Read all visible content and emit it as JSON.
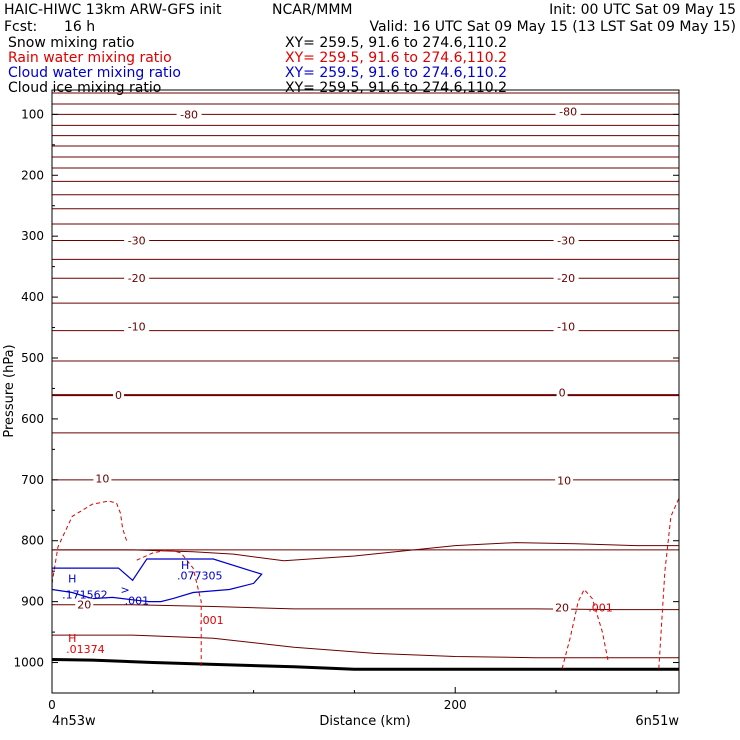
{
  "header": {
    "model": "HAIC-HIWC 13km ARW-GFS init",
    "org": "NCAR/MMM",
    "init": "Init: 00 UTC Sat 09 May 15",
    "fcst_label": "Fcst:",
    "fcst_value": "16 h",
    "valid": "Valid: 16 UTC Sat 09 May 15 (13 LST Sat 09 May 15)"
  },
  "fields": [
    {
      "name": "Snow mixing ratio",
      "xy": "XY= 259.5, 91.6 to 274.6,110.2",
      "color": "#000000"
    },
    {
      "name": "Rain water mixing ratio",
      "xy": "XY= 259.5, 91.6 to 274.6,110.2",
      "color": "#e00000"
    },
    {
      "name": "Cloud water mixing ratio",
      "xy": "XY= 259.5, 91.6 to 274.6,110.2",
      "color": "#0000cc"
    },
    {
      "name": "Cloud ice mixing ratio",
      "xy": "XY= 259.5, 91.6 to 274.6,110.2",
      "color": "#000000"
    }
  ],
  "colors": {
    "isotherm": "#6b0000",
    "terrain": "#000000",
    "rain": "#e00000",
    "cloud_water": "#0000cc"
  },
  "chart_data": {
    "type": "line",
    "xlabel": "Distance (km)",
    "ylabel": "Pressure (hPa)",
    "xlim": [
      0,
      311
    ],
    "ylim": [
      1050,
      60
    ],
    "x_ticks": [
      0,
      200
    ],
    "y_ticks": [
      100,
      200,
      300,
      400,
      500,
      600,
      700,
      800,
      900,
      1000
    ],
    "endpoints": {
      "left": "4n53w",
      "right": "6n51w"
    },
    "isotherms": {
      "pressures": [
        65,
        83,
        100,
        118,
        135,
        152,
        170,
        188,
        210,
        232,
        255,
        280,
        307,
        338,
        369,
        410,
        455,
        505,
        561,
        623,
        700,
        815
      ],
      "labels": [
        {
          "text": "-80",
          "x": 68,
          "p": 100
        },
        {
          "text": "-80",
          "x": 256,
          "p": 95
        },
        {
          "text": "-30",
          "x": 42,
          "p": 307
        },
        {
          "text": "-30",
          "x": 255,
          "p": 307
        },
        {
          "text": "-20",
          "x": 42,
          "p": 369
        },
        {
          "text": "-20",
          "x": 255,
          "p": 369
        },
        {
          "text": "-10",
          "x": 42,
          "p": 448
        },
        {
          "text": "-10",
          "x": 255,
          "p": 448
        },
        {
          "text": "0",
          "x": 33,
          "p": 561
        },
        {
          "text": "0",
          "x": 253,
          "p": 557
        },
        {
          "text": "10",
          "x": 25,
          "p": 698
        },
        {
          "text": "10",
          "x": 254,
          "p": 701
        },
        {
          "text": "20",
          "x": 16,
          "p": 905
        },
        {
          "text": "20",
          "x": 253,
          "p": 910
        }
      ],
      "near_surface": [
        {
          "x": [
            0,
            40,
            80,
            120,
            160,
            200,
            240,
            280,
            311
          ],
          "p": [
            905,
            905,
            908,
            912,
            912,
            912,
            912,
            913,
            913
          ]
        },
        {
          "x": [
            0,
            40,
            80,
            120,
            160,
            200,
            240,
            280,
            311
          ],
          "p": [
            955,
            955,
            960,
            975,
            985,
            990,
            992,
            992,
            992
          ]
        }
      ],
      "warm_curve": {
        "x": [
          0,
          40,
          70,
          90,
          115,
          150,
          200,
          230,
          260,
          290,
          311
        ],
        "p": [
          815,
          815,
          818,
          822,
          833,
          825,
          808,
          803,
          805,
          808,
          808
        ]
      }
    },
    "terrain": {
      "x": [
        0,
        20,
        50,
        80,
        120,
        150,
        200,
        250,
        311
      ],
      "p": [
        995,
        996,
        1000,
        1003,
        1007,
        1011,
        1011,
        1011,
        1011
      ]
    },
    "rain_contours": [
      {
        "x": [
          0,
          3,
          10,
          20,
          28,
          32,
          34,
          35,
          37
        ],
        "p": [
          870,
          810,
          760,
          740,
          735,
          738,
          755,
          780,
          800
        ]
      },
      {
        "x": [
          42,
          50,
          58,
          64,
          70,
          74,
          74
        ],
        "p": [
          832,
          820,
          815,
          820,
          845,
          900,
          1010
        ]
      },
      {
        "x": [
          253,
          257,
          261,
          264,
          268,
          273,
          276
        ],
        "p": [
          1010,
          960,
          900,
          880,
          895,
          950,
          1000
        ]
      },
      {
        "x": [
          301,
          304,
          307,
          311
        ],
        "p": [
          1010,
          850,
          760,
          730
        ]
      }
    ],
    "cloud_water_contour": {
      "x": [
        0,
        20,
        33,
        40,
        47,
        60,
        80,
        104,
        100,
        88,
        70,
        60,
        54,
        48,
        40,
        30,
        20,
        10,
        0,
        0
      ],
      "p": [
        845,
        845,
        845,
        865,
        830,
        830,
        830,
        855,
        870,
        880,
        885,
        895,
        900,
        900,
        897,
        893,
        895,
        885,
        880,
        845
      ]
    },
    "annotations": [
      {
        "text": "H",
        "x": 8,
        "p": 862,
        "color": "rain_blue"
      },
      {
        "text": ".171562",
        "x": 5,
        "p": 888,
        "color": "rain_blue"
      },
      {
        "text": ">",
        "x": 34,
        "p": 880,
        "color": "rain_blue"
      },
      {
        "text": ".001",
        "x": 36,
        "p": 898,
        "color": "rain_blue"
      },
      {
        "text": "H",
        "x": 64,
        "p": 840,
        "color": "rain_blue"
      },
      {
        "text": ".077305",
        "x": 62,
        "p": 857,
        "color": "rain_blue"
      },
      {
        "text": ".001",
        "x": 73,
        "p": 930,
        "color": "rain_red"
      },
      {
        "text": "H",
        "x": 8,
        "p": 960,
        "color": "rain_red"
      },
      {
        "text": ".01374",
        "x": 7,
        "p": 978,
        "color": "rain_red"
      },
      {
        "text": ".001",
        "x": 266,
        "p": 910,
        "color": "rain_red"
      }
    ]
  }
}
